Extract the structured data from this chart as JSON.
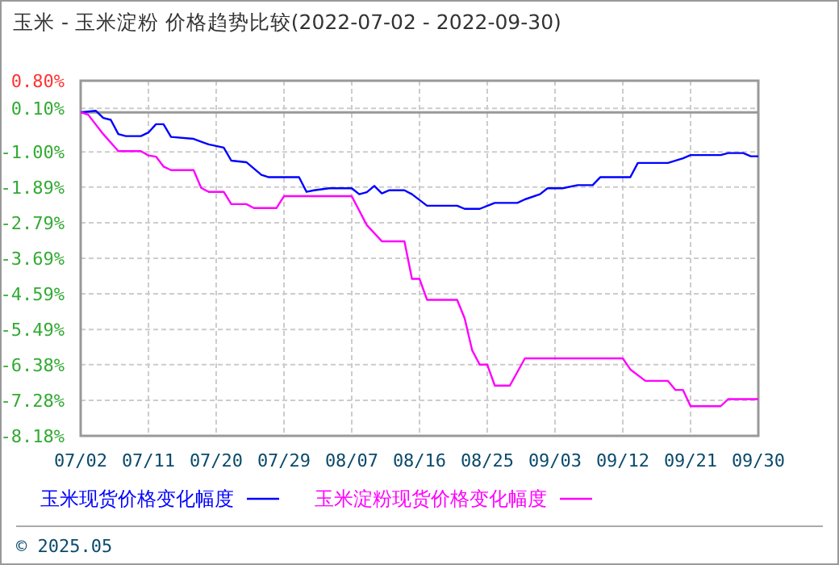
{
  "chart_data": {
    "type": "line",
    "title": "玉米 - 玉米淀粉 价格趋势比较(2022-07-02 - 2022-09-30)",
    "xlim": [
      "2022-07-02",
      "2022-09-30"
    ],
    "xticks": [
      {
        "value": "2022-07-02",
        "label": "07/02"
      },
      {
        "value": "2022-07-11",
        "label": "07/11"
      },
      {
        "value": "2022-07-20",
        "label": "07/20"
      },
      {
        "value": "2022-07-29",
        "label": "07/29"
      },
      {
        "value": "2022-08-07",
        "label": "08/07"
      },
      {
        "value": "2022-08-16",
        "label": "08/16"
      },
      {
        "value": "2022-08-25",
        "label": "08/25"
      },
      {
        "value": "2022-09-03",
        "label": "09/03"
      },
      {
        "value": "2022-09-12",
        "label": "09/12"
      },
      {
        "value": "2022-09-21",
        "label": "09/21"
      },
      {
        "value": "2022-09-30",
        "label": "09/30"
      }
    ],
    "ylim": [
      -8.18,
      0.8
    ],
    "yticks": [
      {
        "value": -8.18,
        "label": "-8.18%"
      },
      {
        "value": -7.28,
        "label": "-7.28%"
      },
      {
        "value": -6.38,
        "label": "-6.38%"
      },
      {
        "value": -5.49,
        "label": "-5.49%"
      },
      {
        "value": -4.59,
        "label": "-4.59%"
      },
      {
        "value": -3.69,
        "label": "-3.69%"
      },
      {
        "value": -2.79,
        "label": "-2.79%"
      },
      {
        "value": -1.89,
        "label": "-1.89%"
      },
      {
        "value": -1.0,
        "label": "-1.00%"
      },
      {
        "value": 0.1,
        "label": "0.10%"
      },
      {
        "value": 0.8,
        "label": "0.80%"
      }
    ],
    "grid": true,
    "legend": "bottom",
    "marker": "none",
    "line_style": "solid",
    "ref_lines": [
      {
        "axis": "y",
        "value": 0,
        "color": "#999999"
      }
    ],
    "annotations": [
      "© 2025.05"
    ],
    "series": [
      {
        "name": "玉米现货价格变化幅度",
        "color": "#0000ff",
        "x": [
          "2022-07-02",
          "2022-07-04",
          "2022-07-05",
          "2022-07-06",
          "2022-07-07",
          "2022-07-08",
          "2022-07-10",
          "2022-07-11",
          "2022-07-12",
          "2022-07-13",
          "2022-07-14",
          "2022-07-17",
          "2022-07-19",
          "2022-07-21",
          "2022-07-22",
          "2022-07-24",
          "2022-07-26",
          "2022-07-27",
          "2022-07-31",
          "2022-08-01",
          "2022-08-02",
          "2022-08-04",
          "2022-08-07",
          "2022-08-08",
          "2022-08-09",
          "2022-08-10",
          "2022-08-11",
          "2022-08-12",
          "2022-08-14",
          "2022-08-15",
          "2022-08-17",
          "2022-08-21",
          "2022-08-22",
          "2022-08-24",
          "2022-08-26",
          "2022-08-29",
          "2022-08-30",
          "2022-09-01",
          "2022-09-02",
          "2022-09-04",
          "2022-09-06",
          "2022-09-08",
          "2022-09-09",
          "2022-09-13",
          "2022-09-14",
          "2022-09-18",
          "2022-09-20",
          "2022-09-21",
          "2022-09-25",
          "2022-09-26",
          "2022-09-28",
          "2022-09-29",
          "2022-09-30"
        ],
        "values": [
          0,
          0.04,
          -0.14,
          -0.19,
          -0.55,
          -0.6,
          -0.6,
          -0.51,
          -0.3,
          -0.3,
          -0.62,
          -0.67,
          -0.81,
          -0.89,
          -1.22,
          -1.26,
          -1.58,
          -1.64,
          -1.64,
          -2.01,
          -1.97,
          -1.92,
          -1.92,
          -2.07,
          -2.02,
          -1.86,
          -2.05,
          -1.97,
          -1.97,
          -2.07,
          -2.36,
          -2.36,
          -2.44,
          -2.44,
          -2.29,
          -2.29,
          -2.2,
          -2.07,
          -1.92,
          -1.92,
          -1.84,
          -1.84,
          -1.64,
          -1.64,
          -1.28,
          -1.28,
          -1.16,
          -1.08,
          -1.08,
          -1.03,
          -1.03,
          -1.11,
          -1.11
        ]
      },
      {
        "name": "玉米淀粉现货价格变化幅度",
        "color": "#ff00ff",
        "x": [
          "2022-07-02",
          "2022-07-03",
          "2022-07-05",
          "2022-07-07",
          "2022-07-10",
          "2022-07-11",
          "2022-07-12",
          "2022-07-13",
          "2022-07-14",
          "2022-07-17",
          "2022-07-18",
          "2022-07-19",
          "2022-07-21",
          "2022-07-22",
          "2022-07-24",
          "2022-07-25",
          "2022-07-28",
          "2022-07-29",
          "2022-08-07",
          "2022-08-09",
          "2022-08-11",
          "2022-08-14",
          "2022-08-15",
          "2022-08-16",
          "2022-08-17",
          "2022-08-21",
          "2022-08-22",
          "2022-08-23",
          "2022-08-24",
          "2022-08-25",
          "2022-08-26",
          "2022-08-28",
          "2022-08-30",
          "2022-09-12",
          "2022-09-13",
          "2022-09-15",
          "2022-09-18",
          "2022-09-19",
          "2022-09-20",
          "2022-09-21",
          "2022-09-25",
          "2022-09-26",
          "2022-09-30"
        ],
        "values": [
          0,
          -0.06,
          -0.55,
          -0.98,
          -0.98,
          -1.09,
          -1.12,
          -1.37,
          -1.46,
          -1.46,
          -1.91,
          -2.01,
          -2.01,
          -2.32,
          -2.32,
          -2.42,
          -2.42,
          -2.12,
          -2.12,
          -2.85,
          -3.26,
          -3.26,
          -4.21,
          -4.21,
          -4.74,
          -4.74,
          -5.21,
          -6.02,
          -6.38,
          -6.38,
          -6.91,
          -6.91,
          -6.22,
          -6.22,
          -6.5,
          -6.79,
          -6.79,
          -7.02,
          -7.02,
          -7.43,
          -7.43,
          -7.25,
          -7.25
        ]
      }
    ]
  }
}
